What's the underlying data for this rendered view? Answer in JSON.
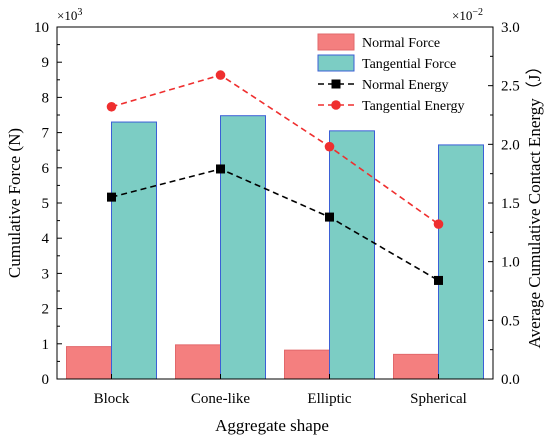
{
  "chart_data": {
    "type": "bar+line",
    "categories": [
      "Block",
      "Cone-like",
      "Elliptic",
      "Spherical"
    ],
    "xlabel": "Aggregate shape",
    "ylabel_left": "Cumulative Force (N)",
    "ylabel_right": "Average Cumulative Contact Energy（J）",
    "left_exponent": "×10",
    "left_exponent_power": "3",
    "right_exponent": "×10",
    "right_exponent_power": "−2",
    "ylim_left": [
      0,
      10
    ],
    "ylim_right": [
      0,
      3.0
    ],
    "left_ticks": [
      "0",
      "1",
      "2",
      "3",
      "4",
      "5",
      "6",
      "7",
      "8",
      "9",
      "10"
    ],
    "right_ticks": [
      "0.0",
      "0.5",
      "1.0",
      "1.5",
      "2.0",
      "2.5",
      "3.0"
    ],
    "bar_series": [
      {
        "name": "Normal Force",
        "values": [
          0.92,
          0.97,
          0.82,
          0.7
        ],
        "color": "#f47f7f",
        "stroke": "#e2686b"
      },
      {
        "name": "Tangential Force",
        "values": [
          7.3,
          7.48,
          7.05,
          6.65
        ],
        "color": "#7ccdc4",
        "stroke": "#3b5fd6"
      }
    ],
    "line_series": [
      {
        "name": "Normal Energy",
        "values": [
          1.55,
          1.79,
          1.38,
          0.84
        ],
        "color": "#000000",
        "marker": "square"
      },
      {
        "name": "Tangential Energy",
        "values": [
          2.32,
          2.59,
          1.98,
          1.32
        ],
        "color": "#ef2f2f",
        "marker": "circle"
      }
    ],
    "legend_position": "top-right",
    "grid": false
  }
}
